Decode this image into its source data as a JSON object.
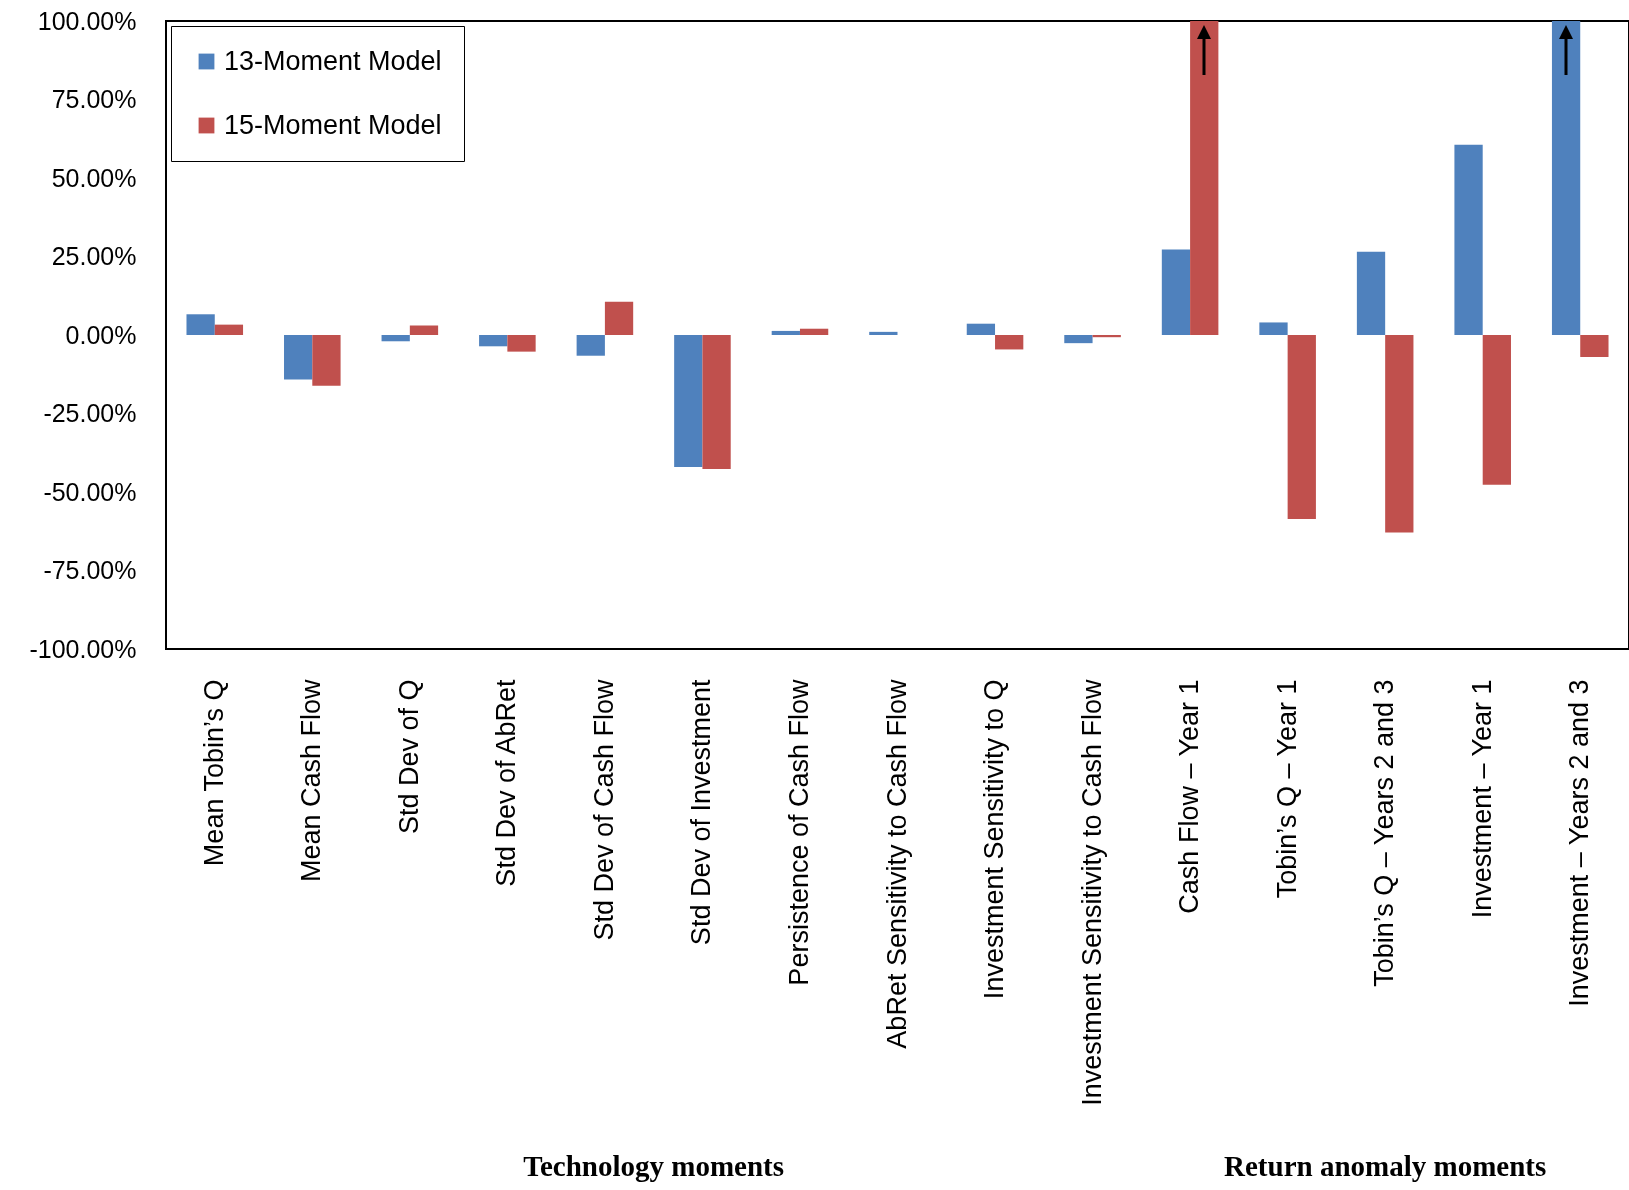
{
  "chart_data": {
    "type": "bar",
    "categories": [
      "Mean Tobin’s Q",
      "Mean Cash Flow",
      "Std Dev of Q",
      "Std Dev of  AbRet",
      "Std Dev of  Cash Flow",
      "Std Dev of  Investment",
      "Persistence of  Cash Flow",
      "AbRet Sensitivity to Cash Flow",
      "Investment Sensitivity to Q",
      "Investment Sensitivity to Cash Flow",
      "Cash Flow – Year 1",
      "Tobin’s Q – Year 1",
      "Tobin’s Q – Years 2 and 3",
      "Investment – Year 1",
      "Investment – Years 2 and 3"
    ],
    "series": [
      {
        "name": "13-Moment Model",
        "color": "#4f81bd",
        "values": [
          6.6,
          -14.2,
          -2,
          -3.6,
          -6.6,
          -42,
          1.3,
          1,
          3.6,
          -2.6,
          27.2,
          4,
          26.5,
          60.6,
          100
        ]
      },
      {
        "name": "15-Moment Model",
        "color": "#c0504d",
        "values": [
          3.3,
          -16.2,
          3,
          -5.3,
          10.6,
          -42.7,
          2,
          0,
          -4.6,
          -0.7,
          100,
          -58.6,
          -62.9,
          -47.7,
          -7
        ]
      }
    ],
    "ylim": [
      -100,
      100
    ],
    "yticks": [
      {
        "value": -100,
        "label": "-100.00%"
      },
      {
        "value": -75,
        "label": "-75.00%"
      },
      {
        "value": -50,
        "label": "-50.00%"
      },
      {
        "value": -25,
        "label": "-25.00%"
      },
      {
        "value": 0,
        "label": "0.00%"
      },
      {
        "value": 25,
        "label": "25.00%"
      },
      {
        "value": 50,
        "label": "50.00%"
      },
      {
        "value": 75,
        "label": "75.00%"
      },
      {
        "value": 100,
        "label": "100.00%"
      }
    ],
    "grid": false,
    "legend": "top left",
    "annotations": [
      "Technology moments",
      "Return anomaly moments"
    ]
  }
}
